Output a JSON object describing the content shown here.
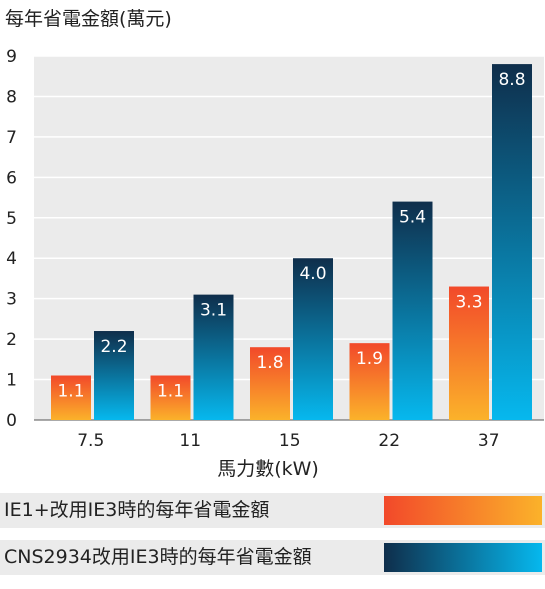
{
  "chart_data": {
    "type": "bar",
    "title": "每年省電金額(萬元)",
    "xlabel": "馬力數(kW)",
    "ylabel": "",
    "categories": [
      "7.5",
      "11",
      "15",
      "22",
      "37"
    ],
    "ylim": [
      0,
      9
    ],
    "yticks": [
      0,
      1,
      2,
      3,
      4,
      5,
      6,
      7,
      8,
      9
    ],
    "grid": true,
    "legend_position": "bottom",
    "series": [
      {
        "name": "IE1+改用IE3時的每年省電金額",
        "values": [
          1.1,
          1.1,
          1.8,
          1.9,
          3.3
        ],
        "labels": [
          "1.1",
          "1.1",
          "1.8",
          "1.9",
          "3.3"
        ],
        "gradient": [
          "#f2492a",
          "#fbb22a"
        ]
      },
      {
        "name": "CNS2934改用IE3時的每年省電金額",
        "values": [
          2.2,
          3.1,
          4.0,
          5.4,
          8.8
        ],
        "labels": [
          "2.2",
          "3.1",
          "4.0",
          "5.4",
          "8.8"
        ],
        "gradient": [
          "#0f2e4b",
          "#06b8ee"
        ]
      }
    ],
    "colors": {
      "plot_background": "#ebebeb",
      "gridline": "#ffffff",
      "text": "#222222",
      "bar_label": "#ffffff"
    }
  }
}
